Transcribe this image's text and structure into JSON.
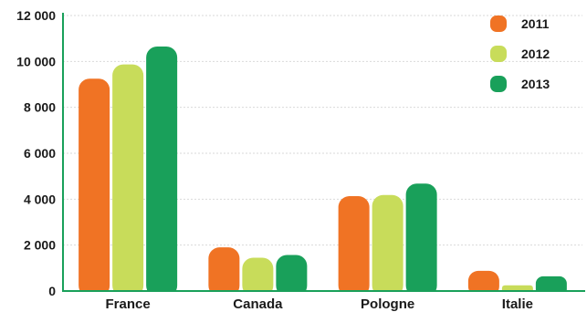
{
  "chart_data": {
    "type": "bar",
    "categories": [
      "France",
      "Canada",
      "Pologne",
      "Italie"
    ],
    "series": [
      {
        "name": "2011",
        "color": "#f07324",
        "values": [
          9250,
          1900,
          4130,
          880
        ]
      },
      {
        "name": "2012",
        "color": "#c8dc5a",
        "values": [
          9870,
          1450,
          4180,
          250
        ]
      },
      {
        "name": "2013",
        "color": "#19a05a",
        "values": [
          10650,
          1570,
          4680,
          640
        ]
      }
    ],
    "ylim": [
      0,
      12000
    ],
    "yticks": [
      0,
      2000,
      4000,
      6000,
      8000,
      10000,
      12000
    ],
    "ytick_labels": [
      "0",
      "2 000",
      "4 000",
      "6 000",
      "8 000",
      "10 000",
      "12 000"
    ],
    "grid": true,
    "legend_position": "top-right",
    "title": "",
    "xlabel": "",
    "ylabel": ""
  }
}
